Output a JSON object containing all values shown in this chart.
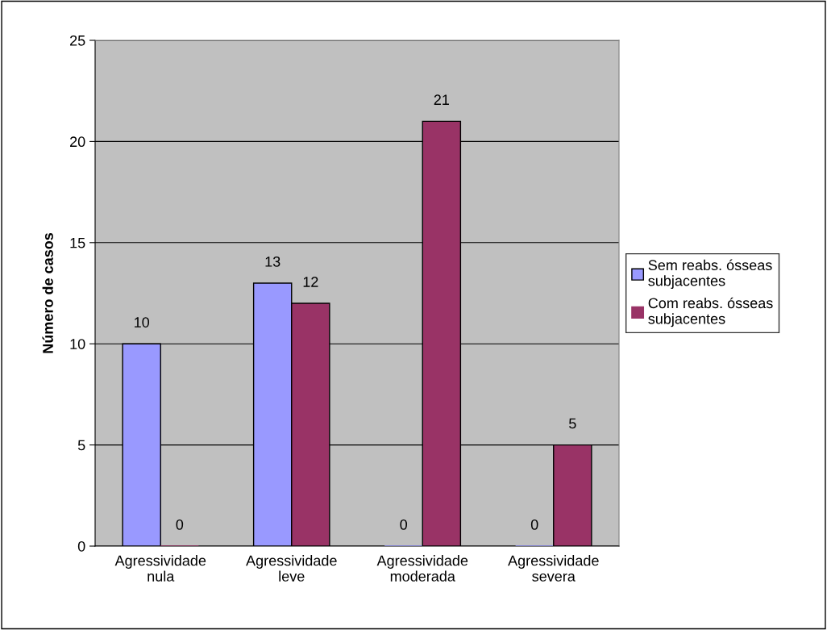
{
  "chart_data": {
    "type": "bar",
    "ylabel": "Número de casos",
    "categories": [
      "Agressividade\nnula",
      "Agressividade\nleve",
      "Agressividade\nmoderada",
      "Agressividade\nsevera"
    ],
    "series": [
      {
        "name": "Sem reabs. ósseas\nsubjacentes",
        "color": "#9999ff",
        "values": [
          10,
          13,
          0,
          0
        ]
      },
      {
        "name": "Com reabs. ósseas\nsubjacentes",
        "color": "#993366",
        "values": [
          0,
          12,
          21,
          5
        ]
      }
    ],
    "ylim": [
      0,
      25
    ],
    "yticks": [
      0,
      5,
      10,
      15,
      20,
      25
    ],
    "grid": "y",
    "legend": "right",
    "data_labels": true
  }
}
